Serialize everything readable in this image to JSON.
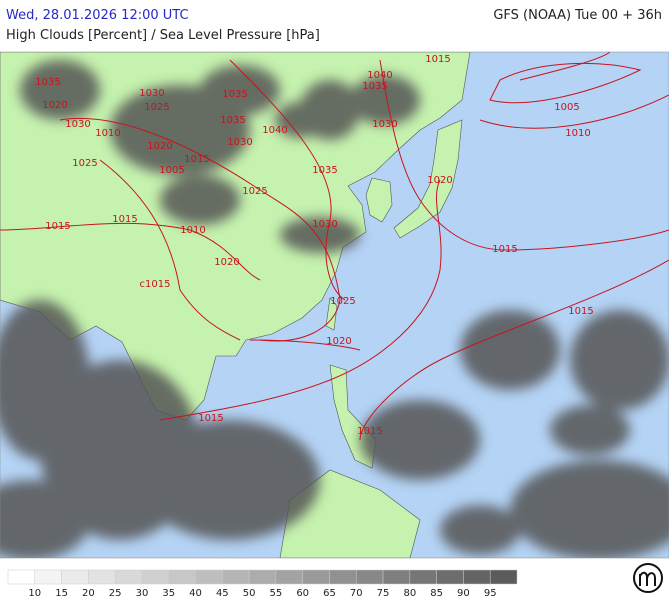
{
  "header": {
    "datetime": "Wed, 28.01.2026 12:00 UTC",
    "model": "GFS (NOAA) Tue 00 + 36h",
    "subtitle": "High Clouds [Percent] / Sea Level Pressure [hPa]"
  },
  "isobar_labels": [
    "1035",
    "1020",
    "1030",
    "1010",
    "1025",
    "1015",
    "1015",
    "1010",
    "1020",
    "c1015",
    "1030",
    "1025",
    "1035",
    "1035",
    "1040",
    "1030",
    "1020",
    "1015",
    "1005",
    "1025",
    "1035",
    "1030",
    "1040",
    "1035",
    "1030",
    "1015",
    "1020",
    "1015",
    "1005",
    "1010",
    "1025",
    "1020",
    "1015",
    "1015",
    "1015"
  ],
  "legend": {
    "labels": [
      10,
      15,
      20,
      25,
      30,
      35,
      40,
      45,
      50,
      55,
      60,
      65,
      70,
      75,
      80,
      85,
      90,
      95
    ],
    "colors": [
      "#ffffff",
      "#f4f4f4",
      "#ebebeb",
      "#e2e2e2",
      "#d9d9d9",
      "#d0d0d0",
      "#c7c7c7",
      "#bebebe",
      "#b5b5b5",
      "#acacac",
      "#a3a3a3",
      "#9a9a9a",
      "#919191",
      "#888888",
      "#7f7f7f",
      "#767676",
      "#6d6d6d",
      "#646464",
      "#5b5b5b"
    ]
  }
}
